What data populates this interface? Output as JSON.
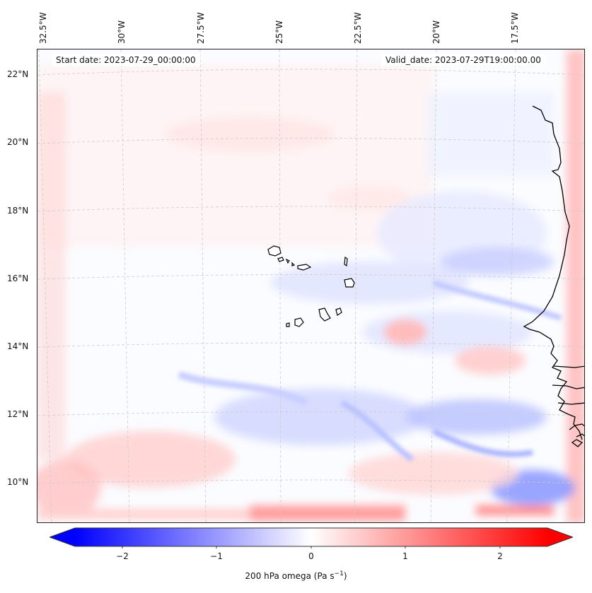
{
  "map": {
    "start_label": "Start date: 2023-07-29_00:00:00",
    "valid_label": "Valid_date: 2023-07-29T19:00:00.00",
    "lon_ticks": [
      "32.5°W",
      "30°W",
      "27.5°W",
      "25°W",
      "22.5°W",
      "20°W",
      "17.5°W"
    ],
    "lat_ticks": [
      "22°N",
      "20°N",
      "18°N",
      "16°N",
      "14°N",
      "12°N",
      "10°N"
    ],
    "colorbar": {
      "label": "200 hPa omega (Pa s",
      "label_sup": "−1",
      "label_close": ")",
      "ticks": [
        "−2",
        "−1",
        "0",
        "1",
        "2"
      ],
      "min_color": "#0000ff",
      "mid_color": "#ffffff",
      "max_color": "#ff0000"
    },
    "colors": {
      "coastline": "#000000",
      "grid": "#cccccc"
    }
  }
}
